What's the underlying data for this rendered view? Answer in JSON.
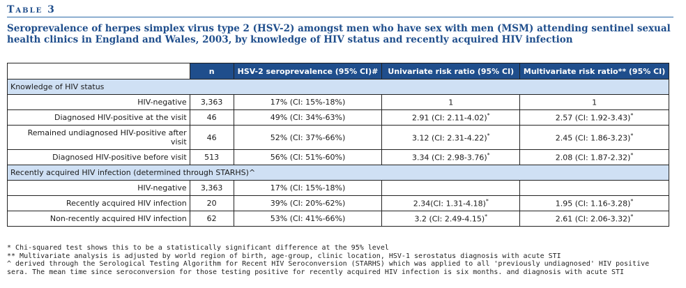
{
  "table_label": "Table 3",
  "caption": "Seroprevalence of herpes simplex virus type 2 (HSV-2) amongst men who have sex with men (MSM) attending sentinel sexual health clinics in England and Wales, 2003, by knowledge of HIV status and recently acquired HIV infection",
  "columns": [
    "",
    "n",
    "HSV-2 seroprevalence (95% CI)#",
    "Univariate risk ratio (95% CI)",
    "Multivariate risk ratio** (95% CI)"
  ],
  "sections": [
    {
      "title": "Knowledge of HIV status",
      "rows": [
        {
          "label": "HIV-negative",
          "n": "3,363",
          "sero": "17% (CI: 15%-18%)",
          "uni": "1",
          "uni_sup": "",
          "multi": "1",
          "multi_sup": ""
        },
        {
          "label": "Diagnosed HIV-positive at the visit",
          "n": "46",
          "sero": "49% (CI: 34%-63%)",
          "uni": "2.91 (CI: 2.11-4.02)",
          "uni_sup": "*",
          "multi": "2.57 (CI: 1.92-3.43)",
          "multi_sup": "*"
        },
        {
          "label": "Remained undiagnosed HIV-positive after visit",
          "n": "46",
          "sero": "52% (CI: 37%-66%)",
          "uni": "3.12 (CI: 2.31-4.22)",
          "uni_sup": "*",
          "multi": "2.45 (CI: 1.86-3.23)",
          "multi_sup": "*"
        },
        {
          "label": "Diagnosed HIV-positive before visit",
          "n": "513",
          "sero": "56% (CI: 51%-60%)",
          "uni": "3.34 (CI: 2.98-3.76)",
          "uni_sup": "*",
          "multi": "2.08 (CI: 1.87-2.32)",
          "multi_sup": "*"
        }
      ]
    },
    {
      "title": "Recently acquired HIV infection (determined through STARHS)^",
      "rows": [
        {
          "label": "HIV-negative",
          "n": "3,363",
          "sero": "17% (CI: 15%-18%)",
          "uni": "",
          "uni_sup": "",
          "multi": "",
          "multi_sup": ""
        },
        {
          "label": "Recently acquired HIV infection",
          "n": "20",
          "sero": "39% (CI: 20%-62%)",
          "uni": "2.34(CI: 1.31-4.18)",
          "uni_sup": "*",
          "multi": "1.95 (CI: 1.16-3.28)",
          "multi_sup": "*"
        },
        {
          "label": "Non-recently acquired HIV infection",
          "n": "62",
          "sero": "53% (CI: 41%-66%)",
          "uni": "3.2 (CI: 2.49-4.15)",
          "uni_sup": "*",
          "multi": "2.61 (CI: 2.06-3.32)",
          "multi_sup": "*"
        }
      ]
    }
  ],
  "footnotes": [
    "* Chi-squared test shows this to be a statistically significant difference at the 95% level",
    "** Multivariate analysis is adjusted by world region of birth, age-group, clinic location, HSV-1 serostatus diagnosis with acute STI",
    "^ derived through the Serological Testing Algorithm for Recent HIV Seroconversion (STARHS) which was applied to all 'previously undiagnosed' HIV positive sera.  The mean time since seroconversion for those testing positive for recently acquired HIV infection is six months. and diagnosis with acute STI"
  ]
}
